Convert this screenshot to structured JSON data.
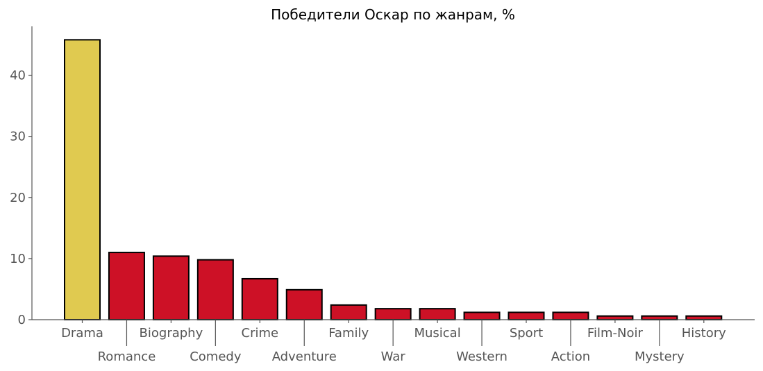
{
  "chart_data": {
    "type": "bar",
    "title": "Победители Оскар по жанрам, %",
    "xlabel": "",
    "ylabel": "",
    "ylim": [
      0,
      48
    ],
    "yticks": [
      0,
      10,
      20,
      30,
      40
    ],
    "grid": false,
    "categories": [
      "Drama",
      "Romance",
      "Biography",
      "Comedy",
      "Crime",
      "Adventure",
      "Family",
      "War",
      "Musical",
      "Western",
      "Sport",
      "Action",
      "Film-Noir",
      "Mystery",
      "History"
    ],
    "values": [
      45.8,
      11.0,
      10.4,
      9.8,
      6.7,
      4.9,
      2.4,
      1.8,
      1.8,
      1.2,
      1.2,
      1.2,
      0.6,
      0.6,
      0.6
    ],
    "colors": {
      "highlight": "#e0ca50",
      "bar": "#cd1126",
      "edge": "#000000",
      "axis": "#555555"
    }
  }
}
